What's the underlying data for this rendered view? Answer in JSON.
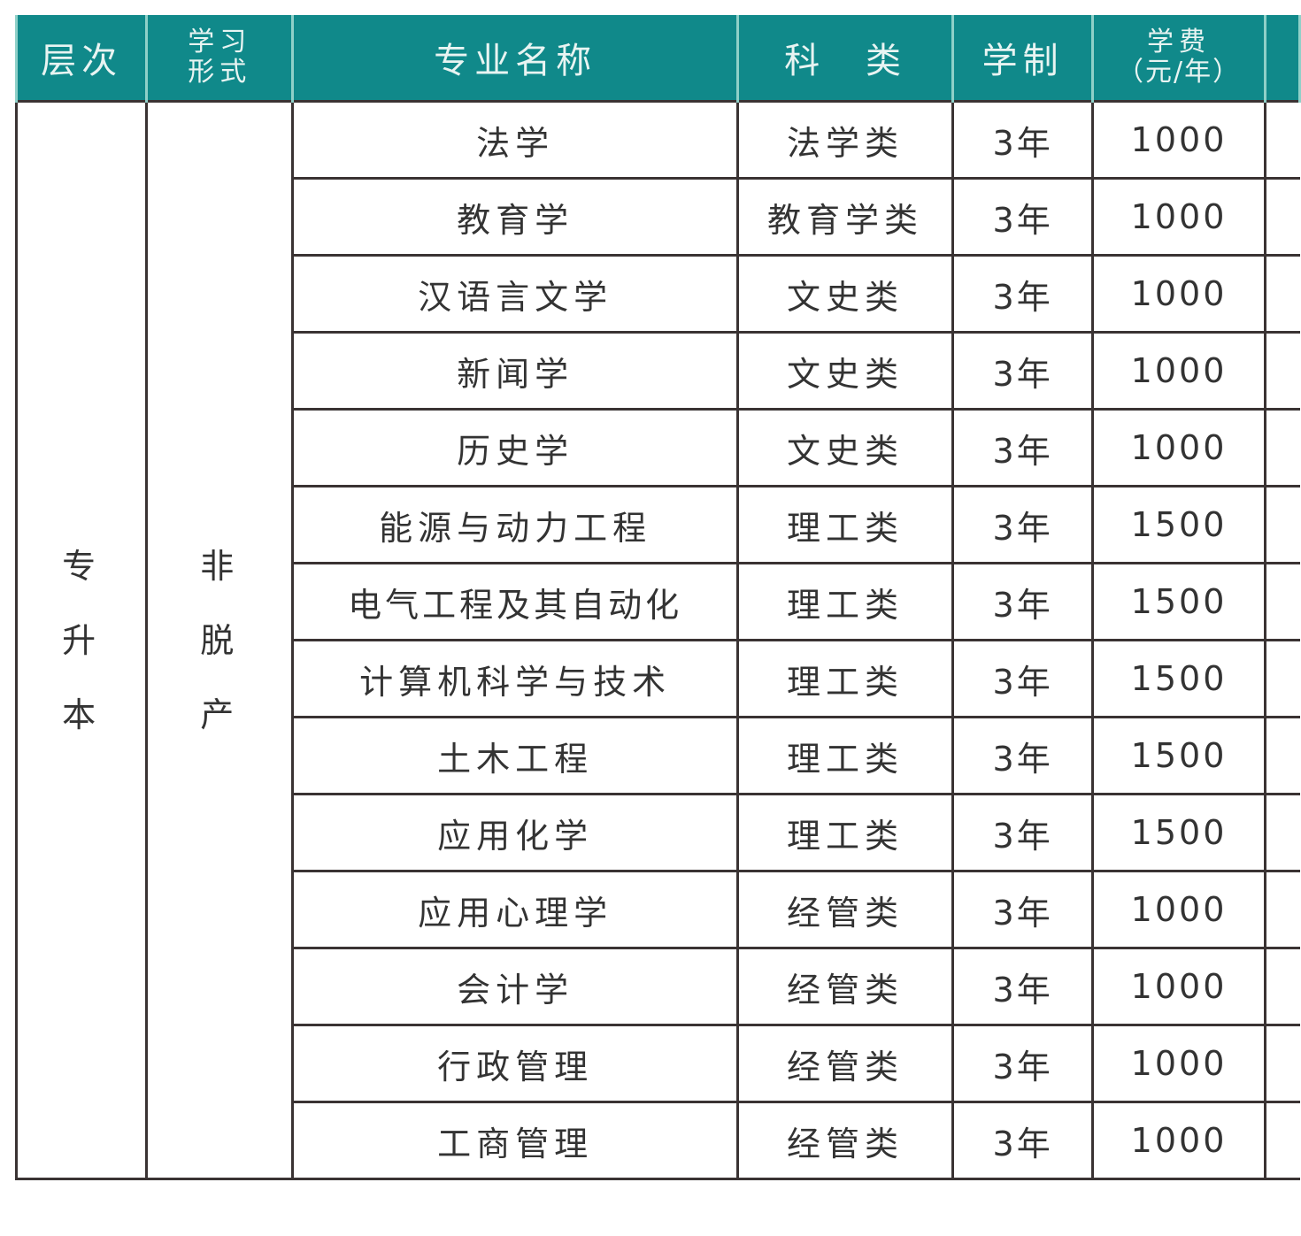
{
  "header": {
    "level": "层次",
    "mode": [
      "学习",
      "形式"
    ],
    "major": "专业名称",
    "category": "科　类",
    "duration": "学制",
    "fee": [
      "学费",
      "（元/年）"
    ]
  },
  "level_value": [
    "专",
    "升",
    "本"
  ],
  "mode_value": [
    "非",
    "脱",
    "产"
  ],
  "rows": [
    {
      "major": "法学",
      "category": "法学类",
      "duration": "3年",
      "fee": "1000"
    },
    {
      "major": "教育学",
      "category": "教育学类",
      "duration": "3年",
      "fee": "1000"
    },
    {
      "major": "汉语言文学",
      "category": "文史类",
      "duration": "3年",
      "fee": "1000"
    },
    {
      "major": "新闻学",
      "category": "文史类",
      "duration": "3年",
      "fee": "1000"
    },
    {
      "major": "历史学",
      "category": "文史类",
      "duration": "3年",
      "fee": "1000"
    },
    {
      "major": "能源与动力工程",
      "category": "理工类",
      "duration": "3年",
      "fee": "1500"
    },
    {
      "major": "电气工程及其自动化",
      "category": "理工类",
      "duration": "3年",
      "fee": "1500"
    },
    {
      "major": "计算机科学与技术",
      "category": "理工类",
      "duration": "3年",
      "fee": "1500"
    },
    {
      "major": "土木工程",
      "category": "理工类",
      "duration": "3年",
      "fee": "1500"
    },
    {
      "major": "应用化学",
      "category": "理工类",
      "duration": "3年",
      "fee": "1500"
    },
    {
      "major": "应用心理学",
      "category": "经管类",
      "duration": "3年",
      "fee": "1000"
    },
    {
      "major": "会计学",
      "category": "经管类",
      "duration": "3年",
      "fee": "1000"
    },
    {
      "major": "行政管理",
      "category": "经管类",
      "duration": "3年",
      "fee": "1000"
    },
    {
      "major": "工商管理",
      "category": "经管类",
      "duration": "3年",
      "fee": "1000"
    }
  ],
  "colors": {
    "header_bg": "#10898a",
    "header_text": "#e8f4f2",
    "border": "#3a3333"
  }
}
